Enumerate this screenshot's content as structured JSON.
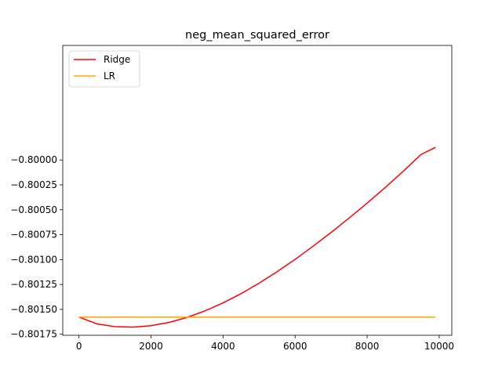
{
  "chart_data": {
    "type": "line",
    "title": "neg_mean_squared_error",
    "xlabel": "",
    "ylabel": "",
    "xlim": [
      -450,
      10350
    ],
    "ylim": [
      -0.80176,
      -0.79885
    ],
    "x_ticks": [
      0,
      2000,
      4000,
      6000,
      8000,
      10000
    ],
    "x_tick_labels": [
      "0",
      "2000",
      "4000",
      "6000",
      "8000",
      "10000"
    ],
    "y_ticks": [
      -0.8,
      -0.80025,
      -0.8005,
      -0.80075,
      -0.801,
      -0.80125,
      -0.8015,
      -0.80175
    ],
    "y_tick_labels": [
      "−0.80000",
      "−0.80025",
      "−0.80050",
      "−0.80075",
      "−0.80100",
      "−0.80125",
      "−0.80150",
      "−0.80175"
    ],
    "grid": false,
    "legend_position": "top-left",
    "series": [
      {
        "name": "Ridge",
        "color": "#ff0000",
        "x": [
          0,
          500,
          1000,
          1500,
          2000,
          2500,
          3000,
          3500,
          4000,
          4500,
          5000,
          5500,
          6000,
          6500,
          7000,
          7500,
          8000,
          8500,
          9000,
          9500,
          9900
        ],
        "y": [
          -0.801578,
          -0.801646,
          -0.801673,
          -0.801678,
          -0.801664,
          -0.801631,
          -0.801581,
          -0.801515,
          -0.801435,
          -0.801342,
          -0.801237,
          -0.801122,
          -0.800998,
          -0.800866,
          -0.800728,
          -0.800583,
          -0.800433,
          -0.800277,
          -0.800114,
          -0.799944,
          -0.799873
        ]
      },
      {
        "name": "LR",
        "color": "#ffa500",
        "x": [
          0,
          9900
        ],
        "y": [
          -0.801578,
          -0.801578
        ]
      }
    ]
  }
}
